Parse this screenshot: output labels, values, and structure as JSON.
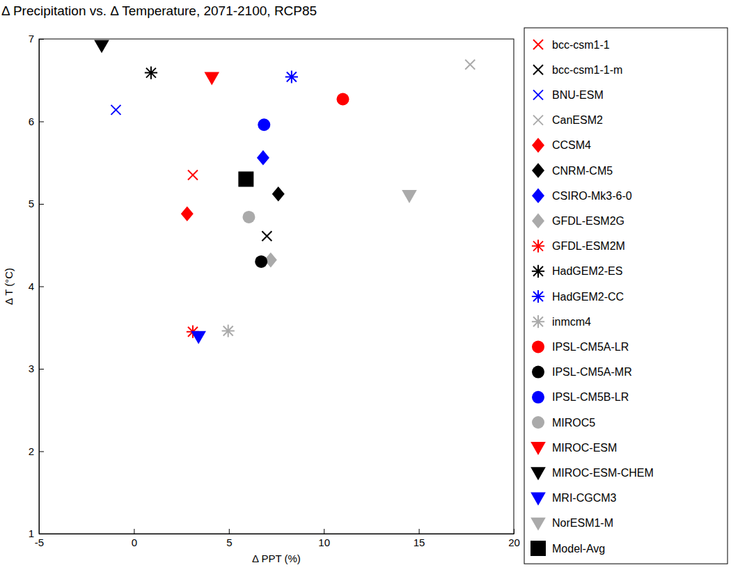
{
  "chart_data": {
    "type": "scatter",
    "title": "Δ Precipitation vs. Δ Temperature, 2071-2100, RCP85",
    "x_label": "Δ PPT (%)",
    "y_label": "Δ T (°C)",
    "xlim": [
      -5,
      20
    ],
    "xticks": [
      -5,
      0,
      5,
      10,
      15,
      20
    ],
    "ylim": [
      1,
      7
    ],
    "yticks": [
      1,
      2,
      3,
      4,
      5,
      6,
      7
    ],
    "legend": "right",
    "grid": false,
    "series": [
      {
        "name": "bcc-csm1-1",
        "color": "#ff0000",
        "marker": "x",
        "x": [
          3.1
        ],
        "values": [
          5.35
        ]
      },
      {
        "name": "bcc-csm1-1-m",
        "color": "#000000",
        "marker": "x",
        "x": [
          7.0
        ],
        "values": [
          4.61
        ]
      },
      {
        "name": "BNU-ESM",
        "color": "#0000ff",
        "marker": "x",
        "x": [
          -0.95
        ],
        "values": [
          6.14
        ]
      },
      {
        "name": "CanESM2",
        "color": "#aaaaaa",
        "marker": "x",
        "x": [
          17.7
        ],
        "values": [
          6.69
        ]
      },
      {
        "name": "CCSM4",
        "color": "#ff0000",
        "marker": "diamond",
        "x": [
          2.8
        ],
        "values": [
          4.88
        ]
      },
      {
        "name": "CNRM-CM5",
        "color": "#000000",
        "marker": "diamond",
        "x": [
          7.6
        ],
        "values": [
          5.12
        ]
      },
      {
        "name": "CSIRO-Mk3-6-0",
        "color": "#0000ff",
        "marker": "diamond",
        "x": [
          6.8
        ],
        "values": [
          5.56
        ]
      },
      {
        "name": "GFDL-ESM2G",
        "color": "#aaaaaa",
        "marker": "diamond",
        "x": [
          7.2
        ],
        "values": [
          4.32
        ]
      },
      {
        "name": "GFDL-ESM2M",
        "color": "#ff0000",
        "marker": "asterisk",
        "x": [
          3.1
        ],
        "values": [
          3.45
        ]
      },
      {
        "name": "HadGEM2-ES",
        "color": "#000000",
        "marker": "asterisk",
        "x": [
          0.9
        ],
        "values": [
          6.59
        ]
      },
      {
        "name": "HadGEM2-CC",
        "color": "#0000ff",
        "marker": "asterisk",
        "x": [
          8.3
        ],
        "values": [
          6.54
        ]
      },
      {
        "name": "inmcm4",
        "color": "#aaaaaa",
        "marker": "asterisk",
        "x": [
          4.96
        ],
        "values": [
          3.46
        ]
      },
      {
        "name": "IPSL-CM5A-LR",
        "color": "#ff0000",
        "marker": "circle",
        "x": [
          11.0
        ],
        "values": [
          6.27
        ]
      },
      {
        "name": "IPSL-CM5A-MR",
        "color": "#000000",
        "marker": "circle",
        "x": [
          6.7
        ],
        "values": [
          4.3
        ]
      },
      {
        "name": "IPSL-CM5B-LR",
        "color": "#0000ff",
        "marker": "circle",
        "x": [
          6.85
        ],
        "values": [
          5.96
        ]
      },
      {
        "name": "MIROC5",
        "color": "#aaaaaa",
        "marker": "circle",
        "x": [
          6.05
        ],
        "values": [
          4.84
        ]
      },
      {
        "name": "MIROC-ESM",
        "color": "#ff0000",
        "marker": "triangle-down",
        "x": [
          4.1
        ],
        "values": [
          6.53
        ]
      },
      {
        "name": "MIROC-ESM-CHEM",
        "color": "#000000",
        "marker": "triangle-down",
        "x": [
          -1.7
        ],
        "values": [
          6.92
        ]
      },
      {
        "name": "MRI-CGCM3",
        "color": "#0000ff",
        "marker": "triangle-down",
        "x": [
          3.4
        ],
        "values": [
          3.39
        ]
      },
      {
        "name": "NorESM1-M",
        "color": "#aaaaaa",
        "marker": "triangle-down",
        "x": [
          14.5
        ],
        "values": [
          5.1
        ]
      },
      {
        "name": "Model-Avg",
        "color": "#000000",
        "marker": "square",
        "x": [
          5.9
        ],
        "values": [
          5.3
        ]
      }
    ]
  }
}
